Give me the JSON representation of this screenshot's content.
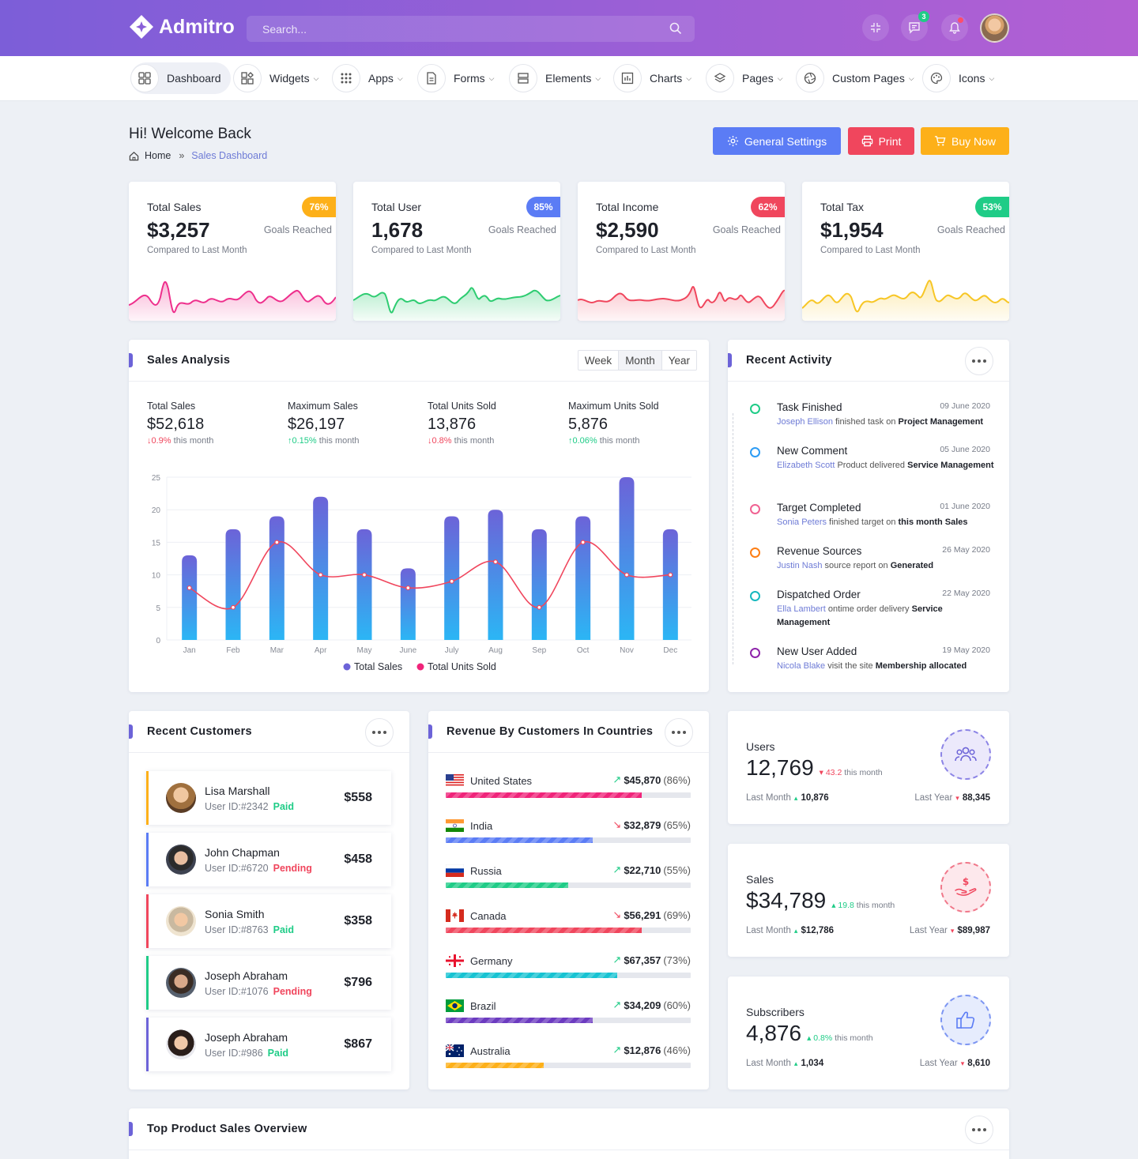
{
  "app": {
    "name": "Admitro"
  },
  "search": {
    "placeholder": "Search..."
  },
  "topbar": {
    "message_count": "3"
  },
  "nav": [
    {
      "label": "Dashboard"
    },
    {
      "label": "Widgets"
    },
    {
      "label": "Apps"
    },
    {
      "label": "Forms"
    },
    {
      "label": "Elements"
    },
    {
      "label": "Charts"
    },
    {
      "label": "Pages"
    },
    {
      "label": "Custom Pages"
    },
    {
      "label": "Icons"
    }
  ],
  "header": {
    "title": "Hi! Welcome Back",
    "breadcrumb_home": "Home",
    "breadcrumb_sep": "»",
    "breadcrumb_current": "Sales Dashboard",
    "btn_settings": "General Settings",
    "btn_print": "Print",
    "btn_buy": "Buy Now"
  },
  "colors": {
    "accent": "#5b7cf5",
    "danger": "#f0465d",
    "warning": "#fdb019",
    "success": "#1fcc87"
  },
  "stats": [
    {
      "title": "Total Sales",
      "value": "$3,257",
      "badge": "76%",
      "goal": "Goals Reached",
      "compare": "Compared to Last Month",
      "color": "#fdb019",
      "line": "#ee2f8c"
    },
    {
      "title": "Total User",
      "value": "1,678",
      "badge": "85%",
      "goal": "Goals Reached",
      "compare": "Compared to Last Month",
      "color": "#5b7cf5",
      "line": "#2ecc71"
    },
    {
      "title": "Total Income",
      "value": "$2,590",
      "badge": "62%",
      "goal": "Goals Reached",
      "compare": "Compared to Last Month",
      "color": "#f0465d",
      "line": "#f0465d"
    },
    {
      "title": "Total Tax",
      "value": "$1,954",
      "badge": "53%",
      "goal": "Goals Reached",
      "compare": "Compared to Last Month",
      "color": "#1fcc87",
      "line": "#f7c625"
    }
  ],
  "sales_analysis": {
    "title": "Sales Analysis",
    "tabs": [
      "Week",
      "Month",
      "Year"
    ],
    "stats": [
      {
        "label": "Total Sales",
        "value": "$52,618",
        "dir": "down",
        "change": "0.9%",
        "suffix": "this month"
      },
      {
        "label": "Maximum Sales",
        "value": "$26,197",
        "dir": "up",
        "change": "0.15%",
        "suffix": "this month"
      },
      {
        "label": "Total Units Sold",
        "value": "13,876",
        "dir": "down",
        "change": "0.8%",
        "suffix": "this month"
      },
      {
        "label": "Maximum Units Sold",
        "value": "5,876",
        "dir": "up",
        "change": "0.06%",
        "suffix": "this month"
      }
    ]
  },
  "chart_data": {
    "type": "bar",
    "categories": [
      "Jan",
      "Feb",
      "Mar",
      "Apr",
      "May",
      "June",
      "July",
      "Aug",
      "Sep",
      "Oct",
      "Nov",
      "Dec"
    ],
    "series": [
      {
        "name": "Total Sales",
        "type": "bar",
        "values": [
          13,
          17,
          19,
          22,
          17,
          11,
          19,
          20,
          17,
          19,
          25,
          17
        ],
        "color": "#6c63d8"
      },
      {
        "name": "Total Units Sold",
        "type": "line",
        "values": [
          8,
          5,
          15,
          10,
          10,
          8,
          9,
          12,
          5,
          15,
          10,
          10
        ],
        "color": "#f0465d"
      }
    ],
    "yticks": [
      "0",
      "5",
      "10",
      "15",
      "20",
      "25"
    ],
    "ylim": [
      0,
      25
    ],
    "grid": true,
    "legend": "bottom"
  },
  "activity": {
    "title": "Recent Activity",
    "items": [
      {
        "title": "Task Finished",
        "date": "09 June 2020",
        "name": "Joseph Ellison",
        "text": "finished task on",
        "bold": "Project Management",
        "color": "#1fcc87"
      },
      {
        "title": "New Comment",
        "date": "05 June 2020",
        "name": "Elizabeth Scott",
        "text": "Product delivered",
        "bold": "Service Management",
        "color": "#2d9cf4"
      },
      {
        "title": "Target Completed",
        "date": "01 June 2020",
        "name": "Sonia Peters",
        "text": "finished target on",
        "bold": "this month Sales",
        "color": "#f06292"
      },
      {
        "title": "Revenue Sources",
        "date": "26 May 2020",
        "name": "Justin Nash",
        "text": "source report on",
        "bold": "Generated",
        "color": "#fd7e14"
      },
      {
        "title": "Dispatched Order",
        "date": "22 May 2020",
        "name": "Ella Lambert",
        "text": "ontime order delivery",
        "bold": "Service Management",
        "color": "#17b8be"
      },
      {
        "title": "New User Added",
        "date": "19 May 2020",
        "name": "Nicola Blake",
        "text": "visit the site",
        "bold": "Membership allocated",
        "color": "#8e24aa"
      }
    ]
  },
  "customers": {
    "title": "Recent Customers",
    "items": [
      {
        "name": "Lisa Marshall",
        "id": "User ID:#2342",
        "status": "Paid",
        "amount": "$558",
        "color": "#fdb019"
      },
      {
        "name": "John Chapman",
        "id": "User ID:#6720",
        "status": "Pending",
        "amount": "$458",
        "color": "#5b7cf5"
      },
      {
        "name": "Sonia Smith",
        "id": "User ID:#8763",
        "status": "Paid",
        "amount": "$358",
        "color": "#f0465d"
      },
      {
        "name": "Joseph Abraham",
        "id": "User ID:#1076",
        "status": "Pending",
        "amount": "$796",
        "color": "#1fcc87"
      },
      {
        "name": "Joseph Abraham",
        "id": "User ID:#986",
        "status": "Paid",
        "amount": "$867",
        "color": "#6c63d8"
      }
    ]
  },
  "countries": {
    "title": "Revenue By Customers In Countries",
    "items": [
      {
        "name": "United States",
        "amount": "$45,870",
        "pct": "(86%)",
        "fraction": 0.8,
        "trend": "up",
        "color": "#f0247a"
      },
      {
        "name": "India",
        "amount": "$32,879",
        "pct": "(65%)",
        "fraction": 0.6,
        "trend": "down",
        "color": "#5b7cf5"
      },
      {
        "name": "Russia",
        "amount": "$22,710",
        "pct": "(55%)",
        "fraction": 0.5,
        "trend": "up",
        "color": "#1fcc87"
      },
      {
        "name": "Canada",
        "amount": "$56,291",
        "pct": "(69%)",
        "fraction": 0.8,
        "trend": "down",
        "color": "#f0465d"
      },
      {
        "name": "Germany",
        "amount": "$67,357",
        "pct": "(73%)",
        "fraction": 0.7,
        "trend": "up",
        "color": "#17c3d2"
      },
      {
        "name": "Brazil",
        "amount": "$34,209",
        "pct": "(60%)",
        "fraction": 0.6,
        "trend": "up",
        "color": "#6c3bc0"
      },
      {
        "name": "Australia",
        "amount": "$12,876",
        "pct": "(46%)",
        "fraction": 0.4,
        "trend": "up",
        "color": "#fdb019"
      }
    ]
  },
  "mini_stats": [
    {
      "label": "Users",
      "value": "12,769",
      "dir": "down",
      "change": "43.2",
      "suffix": "this month",
      "last_month_label": "Last Month",
      "last_month": "10,876",
      "last_month_dir": "up",
      "last_year_label": "Last Year",
      "last_year": "88,345",
      "last_year_dir": "down",
      "color": "#6c63d8",
      "icon": "users-icon"
    },
    {
      "label": "Sales",
      "value": "$34,789",
      "dir": "up",
      "change": "19.8",
      "suffix": "this month",
      "last_month_label": "Last Month",
      "last_month": "$12,786",
      "last_month_dir": "up",
      "last_year_label": "Last Year",
      "last_year": "$89,987",
      "last_year_dir": "down",
      "color": "#f0465d",
      "icon": "money-hand-icon"
    },
    {
      "label": "Subscribers",
      "value": "4,876",
      "dir": "up",
      "change": "0.8%",
      "suffix": "this month",
      "last_month_label": "Last Month",
      "last_month": "1,034",
      "last_month_dir": "up",
      "last_year_label": "Last Year",
      "last_year": "8,610",
      "last_year_dir": "down",
      "color": "#5b7cf5",
      "icon": "thumbs-up-icon"
    }
  ],
  "top_products": {
    "title": "Top Product Sales Overview"
  }
}
